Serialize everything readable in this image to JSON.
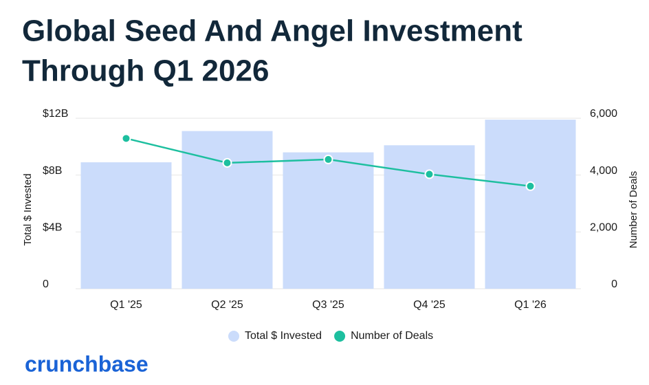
{
  "chart_data": {
    "type": "bar",
    "title": "Global Seed And Angel Investment",
    "subtitle": "Through Q1 2026",
    "categories": [
      "Q1 '25",
      "Q2 '25",
      "Q3 '25",
      "Q4 '25",
      "Q1 '26"
    ],
    "series": [
      {
        "name": "Total $ Invested",
        "color": "#cbdcfb",
        "values": [
          8.9,
          11.1,
          9.6,
          10.1,
          11.9
        ]
      },
      {
        "name": "Number of Deals",
        "color": "#1dbf9f",
        "axis": "y2",
        "values": [
          5290,
          4430,
          4550,
          4030,
          3610
        ]
      }
    ],
    "ylabel": "Total $ Invested",
    "y2label": "Number of Deals",
    "ylim": [
      0,
      12
    ],
    "yticks": [
      0,
      {
        "value": 4,
        "label": "$4B"
      },
      {
        "value": 8,
        "label": "$8B"
      },
      {
        "value": 12,
        "label": "$12B"
      }
    ],
    "y2lim": [
      0,
      6000
    ],
    "y2ticks": [
      0,
      {
        "value": 2000,
        "label": "2,000"
      },
      {
        "value": 4000,
        "label": "4,000"
      },
      {
        "value": 6000,
        "label": "6,000"
      }
    ],
    "grid": true,
    "legend": "bottom",
    "brand": "crunchbase"
  }
}
